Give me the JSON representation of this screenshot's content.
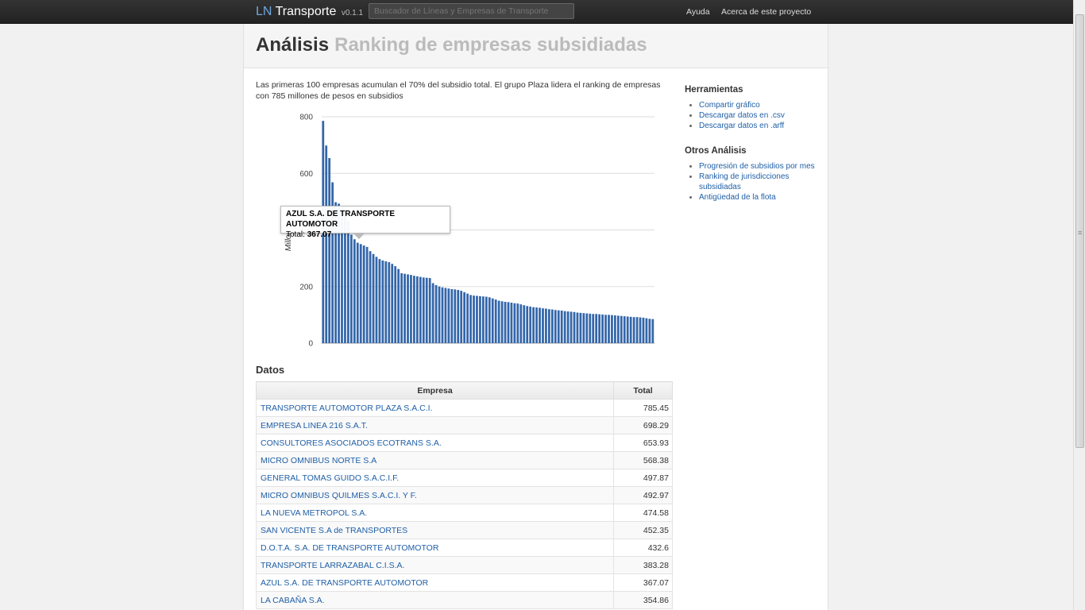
{
  "header": {
    "brand_ln": "LN",
    "brand_name": "Transporte",
    "version": "v0.1.1",
    "search_placeholder": "Buscador de Líneas y Empresas de Transporte",
    "nav": [
      "Ayuda",
      "Acerca de este proyecto"
    ]
  },
  "page": {
    "title": "Análisis",
    "subtitle": "Ranking de empresas subsidiadas",
    "intro": "Las primeras 100 empresas acumulan el 70% del subsidio total. El grupo Plaza lidera el ranking de empresas con 785 millones de pesos en subsidios"
  },
  "chart_data": {
    "type": "bar",
    "ylabel": "Millon",
    "ylim": [
      0,
      800
    ],
    "yticks": [
      "0",
      "200",
      "400",
      "600",
      "800"
    ],
    "grid": true,
    "bar_color": "#3366aa",
    "values": [
      785.45,
      698.29,
      653.93,
      568.38,
      497.87,
      492.97,
      474.58,
      452.35,
      432.6,
      383.28,
      367.07,
      354.86,
      350,
      345,
      340,
      325,
      315,
      305,
      297,
      292,
      289,
      286,
      280,
      272,
      262,
      247,
      245,
      243,
      241,
      238,
      236,
      234,
      232,
      231,
      230,
      212,
      205,
      200,
      197,
      195,
      193,
      191,
      190,
      188,
      185,
      180,
      175,
      170,
      168,
      167,
      166,
      165,
      164,
      162,
      158,
      154,
      150,
      148,
      146,
      145,
      143,
      141,
      140,
      137,
      134,
      131,
      129,
      127,
      126,
      125,
      123,
      122,
      120,
      119,
      117,
      116,
      115,
      113,
      112,
      111,
      110,
      108,
      107,
      106,
      105,
      104,
      103,
      103,
      102,
      101,
      100,
      100,
      99,
      98,
      97,
      96,
      95,
      94,
      93,
      92,
      92,
      91,
      90,
      88,
      86,
      85
    ]
  },
  "tooltip": {
    "name": "AZUL S.A. DE TRANSPORTE AUTOMOTOR",
    "total_label": "Total:",
    "total_value": "367.07"
  },
  "datos": {
    "title": "Datos",
    "headers": [
      "Empresa",
      "Total"
    ],
    "rows": [
      {
        "empresa": "TRANSPORTE AUTOMOTOR PLAZA S.A.C.I.",
        "total": "785.45"
      },
      {
        "empresa": "EMPRESA LINEA 216 S.A.T.",
        "total": "698.29"
      },
      {
        "empresa": "CONSULTORES ASOCIADOS ECOTRANS S.A.",
        "total": "653.93"
      },
      {
        "empresa": "MICRO OMNIBUS NORTE S.A",
        "total": "568.38"
      },
      {
        "empresa": "GENERAL TOMAS GUIDO S.A.C.I.F.",
        "total": "497.87"
      },
      {
        "empresa": "MICRO OMNIBUS QUILMES S.A.C.I. Y F.",
        "total": "492.97"
      },
      {
        "empresa": "LA NUEVA METROPOL S.A.",
        "total": "474.58"
      },
      {
        "empresa": "SAN VICENTE S.A de TRANSPORTES",
        "total": "452.35"
      },
      {
        "empresa": "D.O.T.A. S.A. DE TRANSPORTE AUTOMOTOR",
        "total": "432.6"
      },
      {
        "empresa": "TRANSPORTE LARRAZABAL C.I.S.A.",
        "total": "383.28"
      },
      {
        "empresa": "AZUL S.A. DE TRANSPORTE AUTOMOTOR",
        "total": "367.07"
      },
      {
        "empresa": "LA CABAÑA S.A.",
        "total": "354.86"
      }
    ]
  },
  "sidebar": {
    "herramientas_title": "Herramientas",
    "herramientas": [
      "Compartir gráfico",
      "Descargar datos en .csv",
      "Descargar datos en .arff"
    ],
    "otros_title": "Otros Análisis",
    "otros": [
      "Progresión de subsidios por mes",
      "Ranking de jurisdicciones subsidiadas",
      "Antigüedad de la flota"
    ]
  }
}
